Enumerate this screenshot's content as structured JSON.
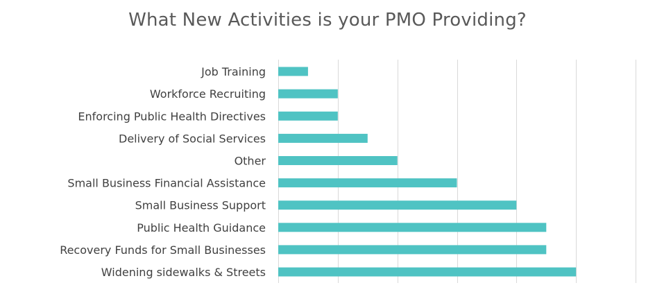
{
  "chart_data": {
    "type": "bar",
    "orientation": "horizontal",
    "title": "What New Activities is your PMO Providing?",
    "categories": [
      "Job Training",
      "Workforce Recruiting",
      "Enforcing Public Health Directives",
      "Delivery of Social Services",
      "Other",
      "Small Business Financial Assistance",
      "Small Business Support",
      "Public Health Guidance",
      "Recovery Funds for Small Businesses",
      "Widening sidewalks & Streets"
    ],
    "values": [
      1,
      2,
      2,
      3,
      4,
      6,
      8,
      9,
      9,
      10
    ],
    "xlim": [
      0,
      12
    ],
    "gridlines": true,
    "x_tick_labels_shown": false,
    "legend": "none",
    "bar_color": "#4fc3c3"
  }
}
